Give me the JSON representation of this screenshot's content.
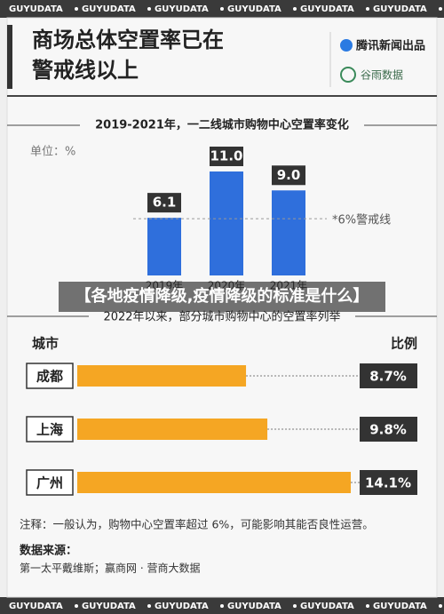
{
  "watermark": "GUYUDATA",
  "header": {
    "title_lines": [
      "商场总体空置率已在",
      "警戒线以上"
    ],
    "brand": "腾讯新闻出品",
    "partner": "谷雨数据"
  },
  "overlay": "【各地疫情降级,疫情降级的标准是什么】",
  "chart_data": [
    {
      "type": "bar",
      "title": "2019-2021年，一二线城市购物中心空置率变化",
      "unit": "单位：%",
      "categories": [
        "2019年",
        "2020年",
        "2021年"
      ],
      "values": [
        6.1,
        11.0,
        9.0
      ],
      "value_labels": [
        "6.1",
        "11.0",
        "9.0"
      ],
      "color": "#2f6fdc",
      "reference_line": {
        "value": 6,
        "label": "*6%警戒线"
      }
    },
    {
      "type": "hbar",
      "title": "2022年以来，部分城市购物中心的空置率列举",
      "category_header": "城市",
      "value_header": "比例",
      "categories": [
        "成都",
        "上海",
        "广州"
      ],
      "values": [
        8.7,
        9.8,
        14.1
      ],
      "value_labels": [
        "8.7%",
        "9.8%",
        "14.1%"
      ],
      "color": "#f5a623"
    }
  ],
  "note": "注释：一般认为，购物中心空置率超过 6%，可能影响其能否良性运营。",
  "source": {
    "label": "数据来源：",
    "text": "第一太平戴维斯；赢商网 · 营商大数据"
  }
}
